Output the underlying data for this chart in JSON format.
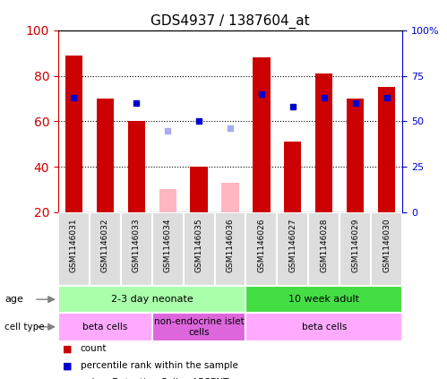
{
  "title": "GDS4937 / 1387604_at",
  "samples": [
    "GSM1146031",
    "GSM1146032",
    "GSM1146033",
    "GSM1146034",
    "GSM1146035",
    "GSM1146036",
    "GSM1146026",
    "GSM1146027",
    "GSM1146028",
    "GSM1146029",
    "GSM1146030"
  ],
  "count_values": [
    89,
    70,
    60,
    null,
    40,
    null,
    88,
    51,
    81,
    70,
    75
  ],
  "count_absent": [
    null,
    null,
    null,
    30,
    null,
    33,
    null,
    null,
    null,
    null,
    null
  ],
  "rank_values": [
    63,
    null,
    60,
    null,
    50,
    null,
    65,
    58,
    63,
    60,
    63
  ],
  "rank_absent": [
    null,
    null,
    null,
    45,
    null,
    46,
    null,
    null,
    null,
    null,
    null
  ],
  "ylim_left": [
    20,
    100
  ],
  "ylim_right": [
    0,
    100
  ],
  "yticks_left": [
    20,
    40,
    60,
    80,
    100
  ],
  "yticks_right": [
    0,
    25,
    50,
    75,
    100
  ],
  "ytick_labels_right": [
    "0",
    "25",
    "50",
    "75",
    "100%"
  ],
  "age_groups": [
    {
      "label": "2-3 day neonate",
      "start": 0,
      "end": 6,
      "color": "#aaffaa"
    },
    {
      "label": "10 week adult",
      "start": 6,
      "end": 11,
      "color": "#44dd44"
    }
  ],
  "cell_type_groups": [
    {
      "label": "beta cells",
      "start": 0,
      "end": 3,
      "color": "#ffaaff"
    },
    {
      "label": "non-endocrine islet\ncells",
      "start": 3,
      "end": 6,
      "color": "#dd66dd"
    },
    {
      "label": "beta cells",
      "start": 6,
      "end": 11,
      "color": "#ffaaff"
    }
  ],
  "bar_width": 0.55,
  "count_color": "#CC0000",
  "count_absent_color": "#FFB6C1",
  "rank_color": "#0000CC",
  "rank_absent_color": "#aaaaee",
  "background_color": "#FFFFFF",
  "plot_bg_color": "#FFFFFF",
  "grid_color": "#000000",
  "left_axis_color": "#CC0000",
  "right_axis_color": "#0000CC",
  "sample_bg_color": "#dddddd"
}
